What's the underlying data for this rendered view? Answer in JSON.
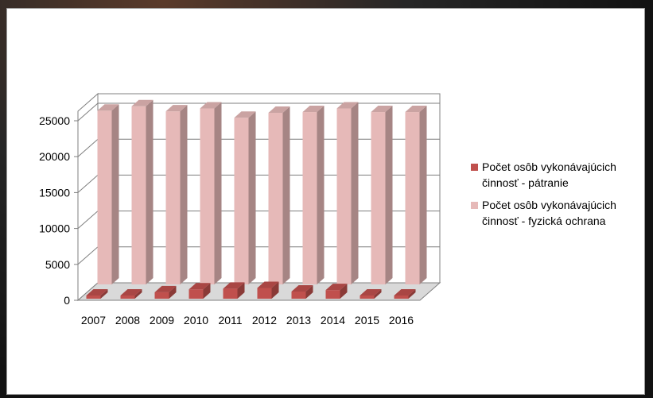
{
  "chart_data": {
    "type": "bar",
    "three_d": true,
    "categories": [
      "2007",
      "2008",
      "2009",
      "2010",
      "2011",
      "2012",
      "2013",
      "2014",
      "2015",
      "2016"
    ],
    "series": [
      {
        "name": "Počet osôb vykonávajúcich činnosť - pátranie",
        "legend_lines": [
          "Počet osôb vykonávajúcich",
          "činnosť - pátranie"
        ],
        "color": "#c0504d",
        "values": [
          400,
          400,
          900,
          1300,
          1400,
          1500,
          1000,
          1200,
          300,
          400
        ]
      },
      {
        "name": "Počet osôb vykonávajúcich činnosť - fyzická ochrana",
        "legend_lines": [
          "Počet osôb vykonávajúcich",
          "činnosť - fyzická ochrana"
        ],
        "color": "#e6b9b8",
        "values": [
          24200,
          24800,
          24100,
          24500,
          23200,
          23900,
          24000,
          24500,
          24000,
          24000
        ]
      }
    ],
    "y_ticks": [
      "0",
      "5000",
      "10000",
      "15000",
      "20000",
      "25000"
    ],
    "ylim": [
      0,
      25000
    ],
    "grid": true,
    "legend": "right"
  }
}
